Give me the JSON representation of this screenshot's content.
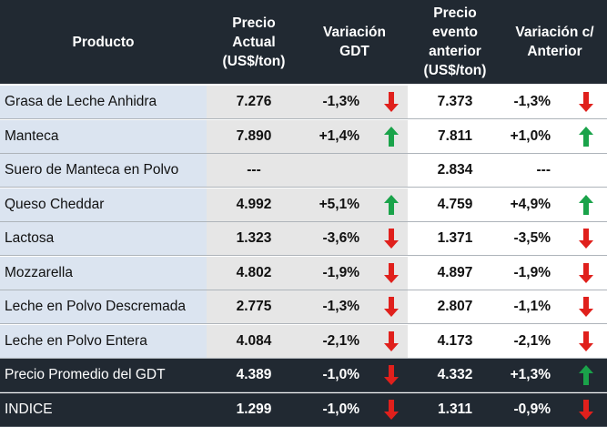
{
  "header": {
    "producto": "Producto",
    "precio_actual": "Precio\nActual\n(US$/ton)",
    "variacion_gdt": "Variación\nGDT",
    "precio_anterior": "Precio\nevento\nanterior\n(US$/ton)",
    "variacion_anterior": "Variación c/\nAnterior"
  },
  "rows": [
    {
      "name": "Grasa de Leche Anhidra",
      "price": "7.276",
      "var": "-1,3%",
      "arrow1": "down",
      "prev": "7.373",
      "var2": "-1,3%",
      "arrow2": "down"
    },
    {
      "name": "Manteca",
      "price": "7.890",
      "var": "+1,4%",
      "arrow1": "up",
      "prev": "7.811",
      "var2": "+1,0%",
      "arrow2": "up"
    },
    {
      "name": "Suero de Manteca en Polvo",
      "price": "---",
      "var": "",
      "arrow1": "",
      "prev": "2.834",
      "var2": "---",
      "arrow2": ""
    },
    {
      "name": "Queso Cheddar",
      "price": "4.992",
      "var": "+5,1%",
      "arrow1": "up",
      "prev": "4.759",
      "var2": "+4,9%",
      "arrow2": "up"
    },
    {
      "name": "Lactosa",
      "price": "1.323",
      "var": "-3,6%",
      "arrow1": "down",
      "prev": "1.371",
      "var2": "-3,5%",
      "arrow2": "down"
    },
    {
      "name": "Mozzarella",
      "price": "4.802",
      "var": "-1,9%",
      "arrow1": "down",
      "prev": "4.897",
      "var2": "-1,9%",
      "arrow2": "down"
    },
    {
      "name": "Leche en Polvo Descremada",
      "price": "2.775",
      "var": "-1,3%",
      "arrow1": "down",
      "prev": "2.807",
      "var2": "-1,1%",
      "arrow2": "down"
    },
    {
      "name": "Leche en Polvo Entera",
      "price": "4.084",
      "var": "-2,1%",
      "arrow1": "down",
      "prev": "4.173",
      "var2": "-2,1%",
      "arrow2": "down"
    },
    {
      "name": "Precio Promedio del GDT",
      "price": "4.389",
      "var": "-1,0%",
      "arrow1": "down",
      "prev": "4.332",
      "var2": "+1,3%",
      "arrow2": "up",
      "summary": true
    },
    {
      "name": "INDICE",
      "price": "1.299",
      "var": "-1,0%",
      "arrow1": "down",
      "prev": "1.311",
      "var2": "-0,9%",
      "arrow2": "down",
      "summary": true
    }
  ],
  "colors": {
    "header_bg": "#212932",
    "name_bg": "#dbe4f0",
    "current_bg": "#e6e6e6",
    "arrow_up": "#1aa34a",
    "arrow_down": "#e0201c"
  },
  "icons": {
    "up": "arrow-up-icon",
    "down": "arrow-down-icon"
  }
}
